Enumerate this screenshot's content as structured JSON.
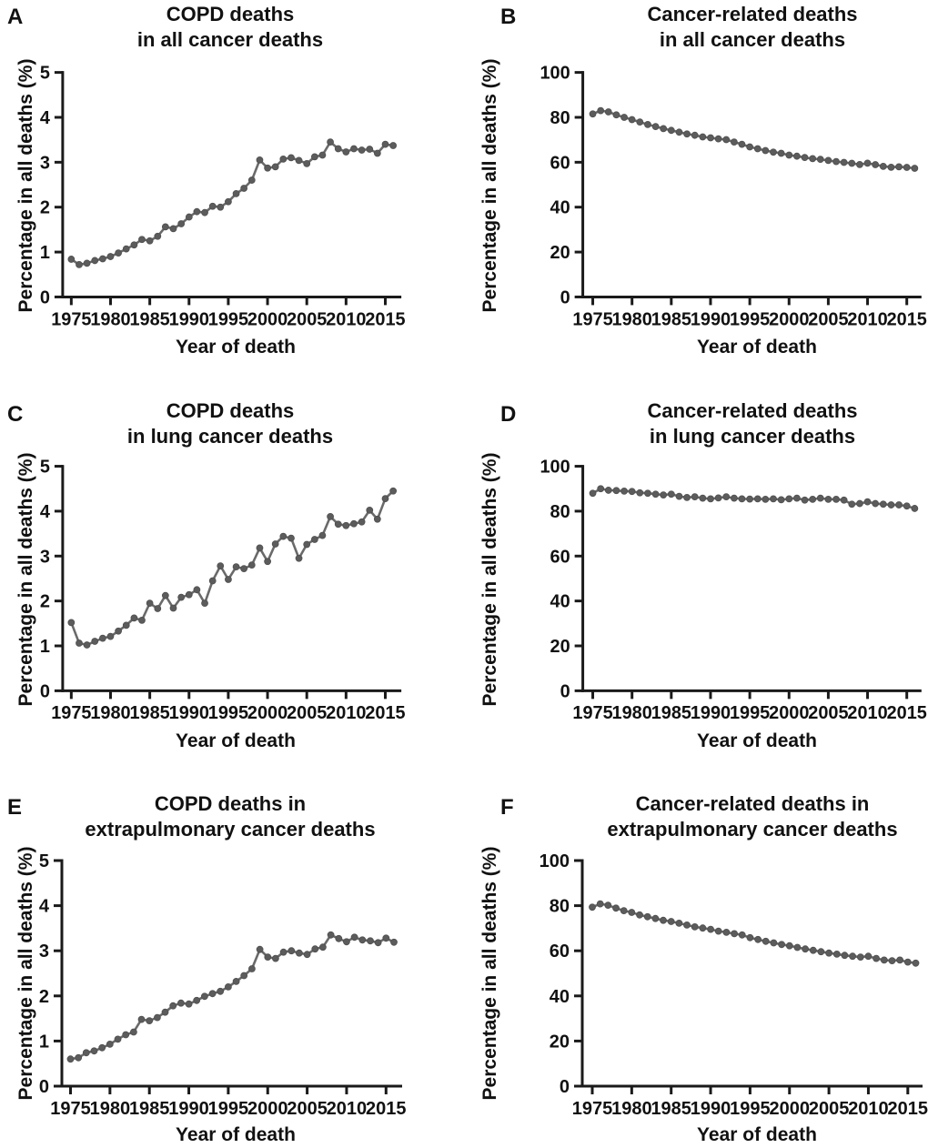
{
  "figure": {
    "background": "#ffffff",
    "line_color": "#6a6a6a",
    "marker_color": "#5c5c5c",
    "axis_color": "#1a1a1a",
    "text_color": "#111111"
  },
  "chart_data": [
    {
      "panel": "A",
      "type": "line",
      "title": "COPD deaths in all cancer deaths",
      "title_lines": [
        "COPD deaths",
        "in all cancer deaths"
      ],
      "xlabel": "Year of death",
      "ylabel": "Percentage in all deaths (%)",
      "ylim": [
        0,
        5
      ],
      "yticks": [
        0,
        1,
        2,
        3,
        4,
        5
      ],
      "xticks": [
        1975,
        1980,
        1985,
        1990,
        1995,
        2000,
        2005,
        2010,
        2015
      ],
      "x": [
        1975,
        1976,
        1977,
        1978,
        1979,
        1980,
        1981,
        1982,
        1983,
        1984,
        1985,
        1986,
        1987,
        1988,
        1989,
        1990,
        1991,
        1992,
        1993,
        1994,
        1995,
        1996,
        1997,
        1998,
        1999,
        2000,
        2001,
        2002,
        2003,
        2004,
        2005,
        2006,
        2007,
        2008,
        2009,
        2010,
        2011,
        2012,
        2013,
        2014,
        2015,
        2016
      ],
      "values": [
        0.84,
        0.72,
        0.75,
        0.81,
        0.85,
        0.9,
        0.98,
        1.07,
        1.16,
        1.28,
        1.25,
        1.35,
        1.56,
        1.52,
        1.63,
        1.78,
        1.9,
        1.88,
        2.02,
        2.0,
        2.12,
        2.3,
        2.42,
        2.6,
        3.05,
        2.87,
        2.9,
        3.07,
        3.1,
        3.04,
        2.97,
        3.12,
        3.16,
        3.45,
        3.3,
        3.23,
        3.3,
        3.27,
        3.29,
        3.2,
        3.4,
        3.37
      ]
    },
    {
      "panel": "B",
      "type": "line",
      "title": "Cancer-related deaths in all cancer deaths",
      "title_lines": [
        "Cancer-related deaths",
        "in all cancer deaths"
      ],
      "xlabel": "Year of death",
      "ylabel": "Percentage in all deaths (%)",
      "ylim": [
        0,
        100
      ],
      "yticks": [
        0,
        20,
        40,
        60,
        80,
        100
      ],
      "xticks": [
        1975,
        1980,
        1985,
        1990,
        1995,
        2000,
        2005,
        2010,
        2015
      ],
      "x": [
        1975,
        1976,
        1977,
        1978,
        1979,
        1980,
        1981,
        1982,
        1983,
        1984,
        1985,
        1986,
        1987,
        1988,
        1989,
        1990,
        1991,
        1992,
        1993,
        1994,
        1995,
        1996,
        1997,
        1998,
        1999,
        2000,
        2001,
        2002,
        2003,
        2004,
        2005,
        2006,
        2007,
        2008,
        2009,
        2010,
        2011,
        2012,
        2013,
        2014,
        2015,
        2016
      ],
      "values": [
        81.5,
        83.0,
        82.4,
        81.1,
        80.0,
        79.0,
        77.9,
        76.8,
        75.9,
        75.0,
        74.2,
        73.4,
        72.6,
        72.0,
        71.3,
        70.9,
        70.4,
        70.1,
        69.0,
        68.0,
        66.8,
        66.0,
        65.2,
        64.5,
        64.0,
        63.2,
        62.7,
        62.1,
        61.6,
        61.3,
        60.8,
        60.3,
        59.9,
        59.5,
        59.0,
        59.6,
        58.9,
        58.2,
        57.8,
        58.0,
        57.7,
        57.3
      ]
    },
    {
      "panel": "C",
      "type": "line",
      "title": "COPD deaths in lung cancer deaths",
      "title_lines": [
        "COPD deaths",
        "in lung cancer deaths"
      ],
      "xlabel": "Year of death",
      "ylabel": "Percentage in all deaths (%)",
      "ylim": [
        0,
        5
      ],
      "yticks": [
        0,
        1,
        2,
        3,
        4,
        5
      ],
      "xticks": [
        1975,
        1980,
        1985,
        1990,
        1995,
        2000,
        2005,
        2010,
        2015
      ],
      "x": [
        1975,
        1976,
        1977,
        1978,
        1979,
        1980,
        1981,
        1982,
        1983,
        1984,
        1985,
        1986,
        1987,
        1988,
        1989,
        1990,
        1991,
        1992,
        1993,
        1994,
        1995,
        1996,
        1997,
        1998,
        1999,
        2000,
        2001,
        2002,
        2003,
        2004,
        2005,
        2006,
        2007,
        2008,
        2009,
        2010,
        2011,
        2012,
        2013,
        2014,
        2015,
        2016
      ],
      "values": [
        1.52,
        1.06,
        1.02,
        1.1,
        1.17,
        1.21,
        1.33,
        1.46,
        1.62,
        1.57,
        1.95,
        1.83,
        2.12,
        1.84,
        2.08,
        2.14,
        2.25,
        1.95,
        2.45,
        2.78,
        2.48,
        2.76,
        2.72,
        2.8,
        3.18,
        2.88,
        3.27,
        3.44,
        3.4,
        2.95,
        3.26,
        3.37,
        3.46,
        3.88,
        3.71,
        3.68,
        3.72,
        3.76,
        4.02,
        3.82,
        4.28,
        4.45
      ]
    },
    {
      "panel": "D",
      "type": "line",
      "title": "Cancer-related deaths in lung cancer deaths",
      "title_lines": [
        "Cancer-related deaths",
        "in lung cancer deaths"
      ],
      "xlabel": "Year of death",
      "ylabel": "Percentage in all deaths (%)",
      "ylim": [
        0,
        100
      ],
      "yticks": [
        0,
        20,
        40,
        60,
        80,
        100
      ],
      "xticks": [
        1975,
        1980,
        1985,
        1990,
        1995,
        2000,
        2005,
        2010,
        2015
      ],
      "x": [
        1975,
        1976,
        1977,
        1978,
        1979,
        1980,
        1981,
        1982,
        1983,
        1984,
        1985,
        1986,
        1987,
        1988,
        1989,
        1990,
        1991,
        1992,
        1993,
        1994,
        1995,
        1996,
        1997,
        1998,
        1999,
        2000,
        2001,
        2002,
        2003,
        2004,
        2005,
        2006,
        2007,
        2008,
        2009,
        2010,
        2011,
        2012,
        2013,
        2014,
        2015,
        2016
      ],
      "values": [
        88.0,
        90.0,
        89.3,
        89.2,
        88.9,
        88.8,
        88.2,
        88.0,
        87.6,
        87.2,
        87.6,
        86.6,
        86.1,
        86.4,
        85.8,
        85.5,
        85.9,
        86.4,
        85.8,
        85.5,
        85.4,
        85.5,
        85.3,
        85.5,
        85.1,
        85.5,
        85.8,
        84.9,
        85.3,
        85.8,
        85.3,
        85.3,
        84.9,
        83.1,
        83.4,
        84.2,
        83.4,
        83.1,
        82.8,
        82.8,
        82.3,
        81.2
      ]
    },
    {
      "panel": "E",
      "type": "line",
      "title": "COPD deaths in extrapulmonary cancer deaths",
      "title_lines": [
        "COPD deaths in",
        "extrapulmonary cancer deaths"
      ],
      "xlabel": "Year of death",
      "ylabel": "Percentage in all deaths (%)",
      "ylim": [
        0,
        5
      ],
      "yticks": [
        0,
        1,
        2,
        3,
        4,
        5
      ],
      "xticks": [
        1975,
        1980,
        1985,
        1990,
        1995,
        2000,
        2005,
        2010,
        2015
      ],
      "x": [
        1975,
        1976,
        1977,
        1978,
        1979,
        1980,
        1981,
        1982,
        1983,
        1984,
        1985,
        1986,
        1987,
        1988,
        1989,
        1990,
        1991,
        1992,
        1993,
        1994,
        1995,
        1996,
        1997,
        1998,
        1999,
        2000,
        2001,
        2002,
        2003,
        2004,
        2005,
        2006,
        2007,
        2008,
        2009,
        2010,
        2011,
        2012,
        2013,
        2014,
        2015,
        2016
      ],
      "values": [
        0.6,
        0.63,
        0.74,
        0.78,
        0.85,
        0.93,
        1.04,
        1.14,
        1.2,
        1.48,
        1.45,
        1.52,
        1.64,
        1.78,
        1.84,
        1.82,
        1.9,
        1.99,
        2.05,
        2.1,
        2.2,
        2.32,
        2.45,
        2.6,
        3.03,
        2.86,
        2.83,
        2.97,
        3.0,
        2.95,
        2.92,
        3.04,
        3.08,
        3.35,
        3.27,
        3.2,
        3.3,
        3.24,
        3.22,
        3.18,
        3.28,
        3.19
      ]
    },
    {
      "panel": "F",
      "type": "line",
      "title": "Cancer-related deaths in extrapulmonary cancer deaths",
      "title_lines": [
        "Cancer-related deaths in",
        "extrapulmonary cancer deaths"
      ],
      "xlabel": "Year of death",
      "ylabel": "Percentage in all deaths (%)",
      "ylim": [
        0,
        100
      ],
      "yticks": [
        0,
        20,
        40,
        60,
        80,
        100
      ],
      "xticks": [
        1975,
        1980,
        1985,
        1990,
        1995,
        2000,
        2005,
        2010,
        2015
      ],
      "x": [
        1975,
        1976,
        1977,
        1978,
        1979,
        1980,
        1981,
        1982,
        1983,
        1984,
        1985,
        1986,
        1987,
        1988,
        1989,
        1990,
        1991,
        1992,
        1993,
        1994,
        1995,
        1996,
        1997,
        1998,
        1999,
        2000,
        2001,
        2002,
        2003,
        2004,
        2005,
        2006,
        2007,
        2008,
        2009,
        2010,
        2011,
        2012,
        2013,
        2014,
        2015,
        2016
      ],
      "values": [
        79.3,
        80.8,
        80.2,
        78.9,
        77.8,
        77.0,
        75.9,
        75.1,
        74.3,
        73.5,
        73.0,
        72.2,
        71.4,
        70.6,
        70.1,
        69.5,
        68.7,
        68.2,
        67.6,
        67.0,
        65.8,
        65.0,
        64.2,
        63.5,
        62.8,
        62.2,
        61.5,
        60.8,
        60.2,
        59.6,
        59.0,
        58.5,
        58.0,
        57.6,
        57.2,
        57.6,
        56.6,
        55.9,
        55.6,
        55.9,
        55.0,
        54.5
      ]
    }
  ]
}
